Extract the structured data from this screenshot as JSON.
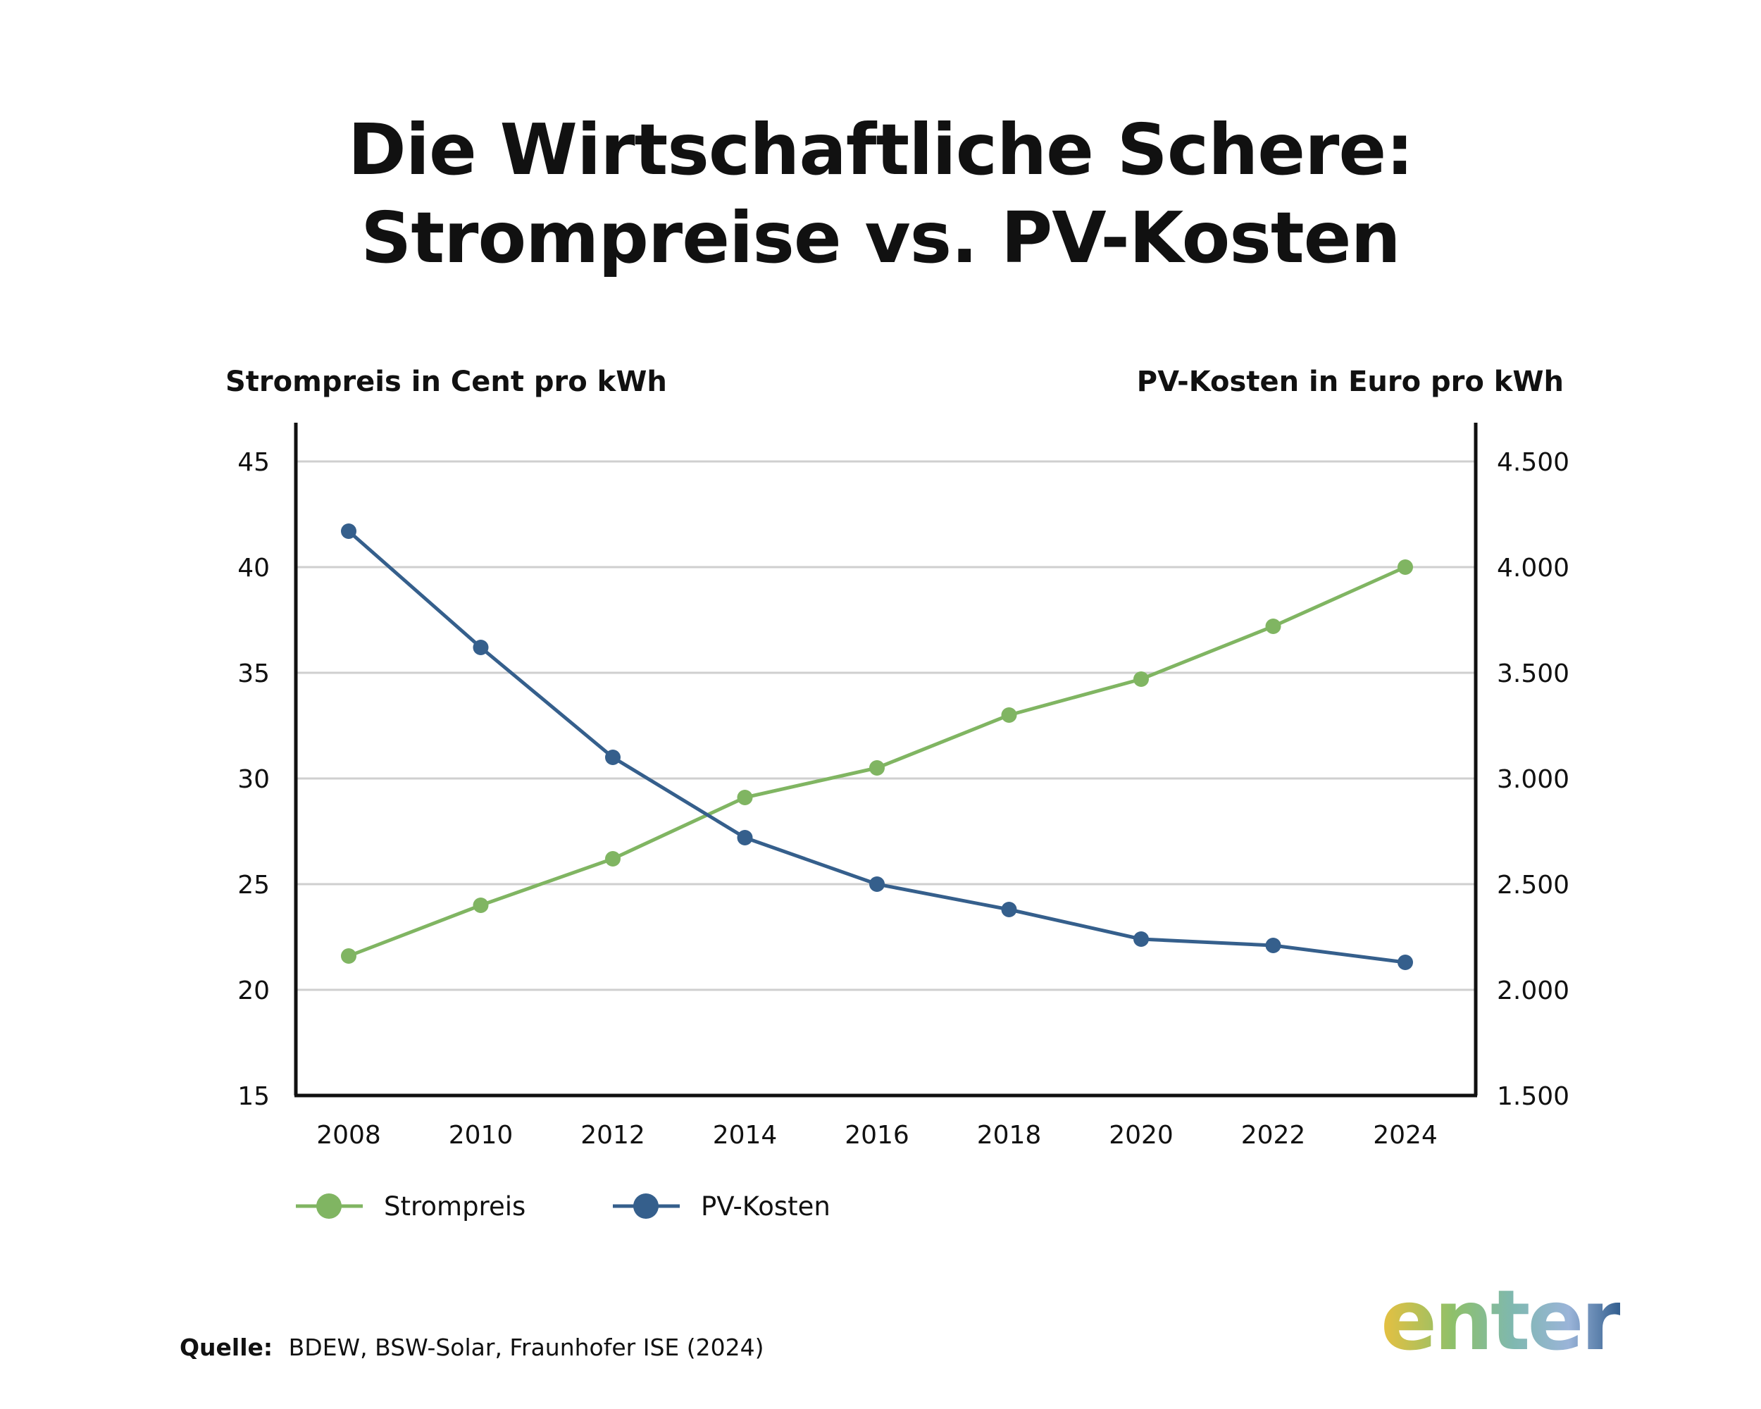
{
  "title": "Die Wirtschaftliche Schere: Strompreise vs. PV-Kosten",
  "chart_data": {
    "type": "line",
    "left_axis_title": "Strompreis in Cent pro kWh",
    "right_axis_title": "PV-Kosten in Euro pro kWh",
    "x": [
      "2008",
      "2010",
      "2012",
      "2014",
      "2016",
      "2018",
      "2020",
      "2022",
      "2024"
    ],
    "y_left": {
      "min": 15,
      "max": 45,
      "ticks": [
        "15",
        "20",
        "25",
        "30",
        "35",
        "40",
        "45"
      ]
    },
    "y_right": {
      "min": 1500,
      "max": 4500,
      "ticks": [
        "1.500",
        "2.000",
        "2.500",
        "3.000",
        "3.500",
        "4.000",
        "4.500"
      ]
    },
    "grid": true,
    "legend_position": "bottom-left",
    "series": [
      {
        "name": "Strompreis",
        "axis": "left",
        "color": "#80b562",
        "values": [
          21.6,
          24.0,
          26.2,
          29.1,
          30.5,
          33.0,
          34.7,
          37.2,
          40.0
        ]
      },
      {
        "name": "PV-Kosten",
        "axis": "right",
        "color": "#355f8c",
        "values": [
          4170,
          3620,
          3100,
          2720,
          2500,
          2380,
          2240,
          2210,
          2130
        ]
      }
    ]
  },
  "source": {
    "label": "Quelle:",
    "text": "BDEW, BSW-Solar, Fraunhofer ISE (2024)"
  },
  "logo": {
    "text": "enter",
    "colors": [
      "#e8c040",
      "#8ec06a",
      "#7fb8b0",
      "#9ab4d8",
      "#2f5b8c"
    ]
  }
}
